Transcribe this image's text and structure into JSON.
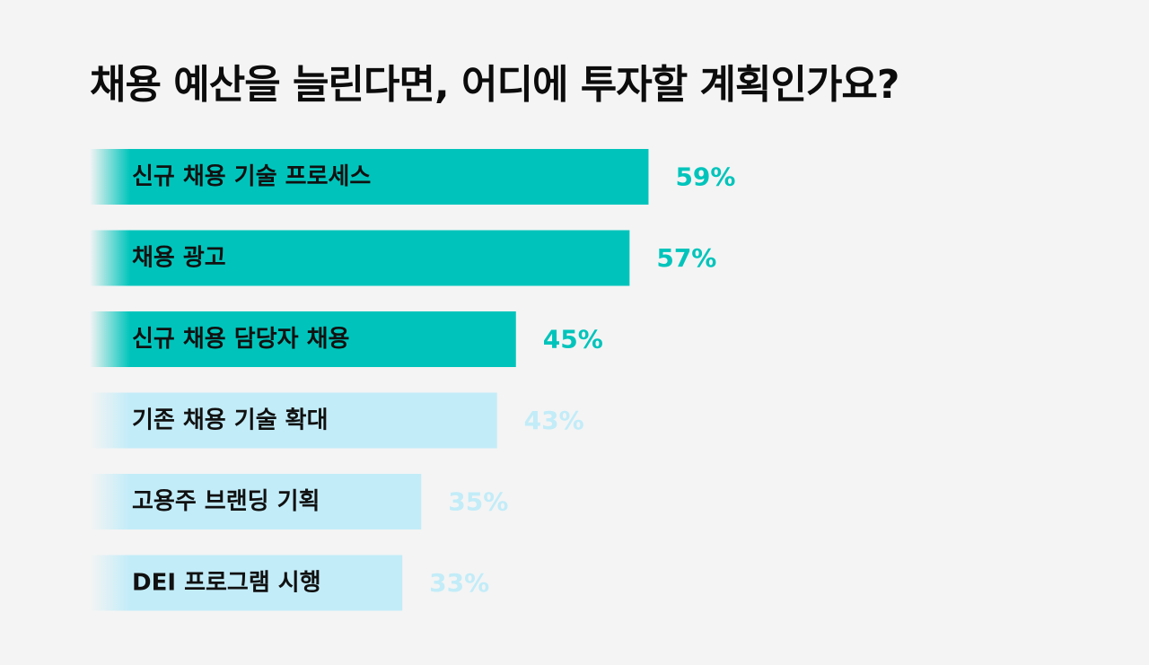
{
  "chart_data": {
    "type": "bar",
    "orientation": "horizontal",
    "title": "채용 예산을 늘린다면, 어디에 투자할 계획인가요?",
    "categories": [
      "신규 채용 기술 프로세스",
      "채용 광고",
      "신규 채용 담당자 채용",
      "기존 채용 기술 확대",
      "고용주 브랜딩 기획",
      "DEI 프로그램 시행"
    ],
    "values": [
      59,
      57,
      45,
      43,
      35,
      33
    ],
    "value_labels": [
      "59%",
      "57%",
      "45%",
      "43%",
      "35%",
      "33%"
    ],
    "highlighted_count": 3,
    "xlim": [
      0,
      100
    ],
    "grid": false,
    "legend": "none"
  },
  "colors": {
    "background": "#f4f4f4",
    "highlight_bar": "#00c4bb",
    "muted_bar": "#c2ecf8",
    "highlight_value": "#00c4bb",
    "muted_value": "#c2ecf8",
    "text": "#111111"
  }
}
